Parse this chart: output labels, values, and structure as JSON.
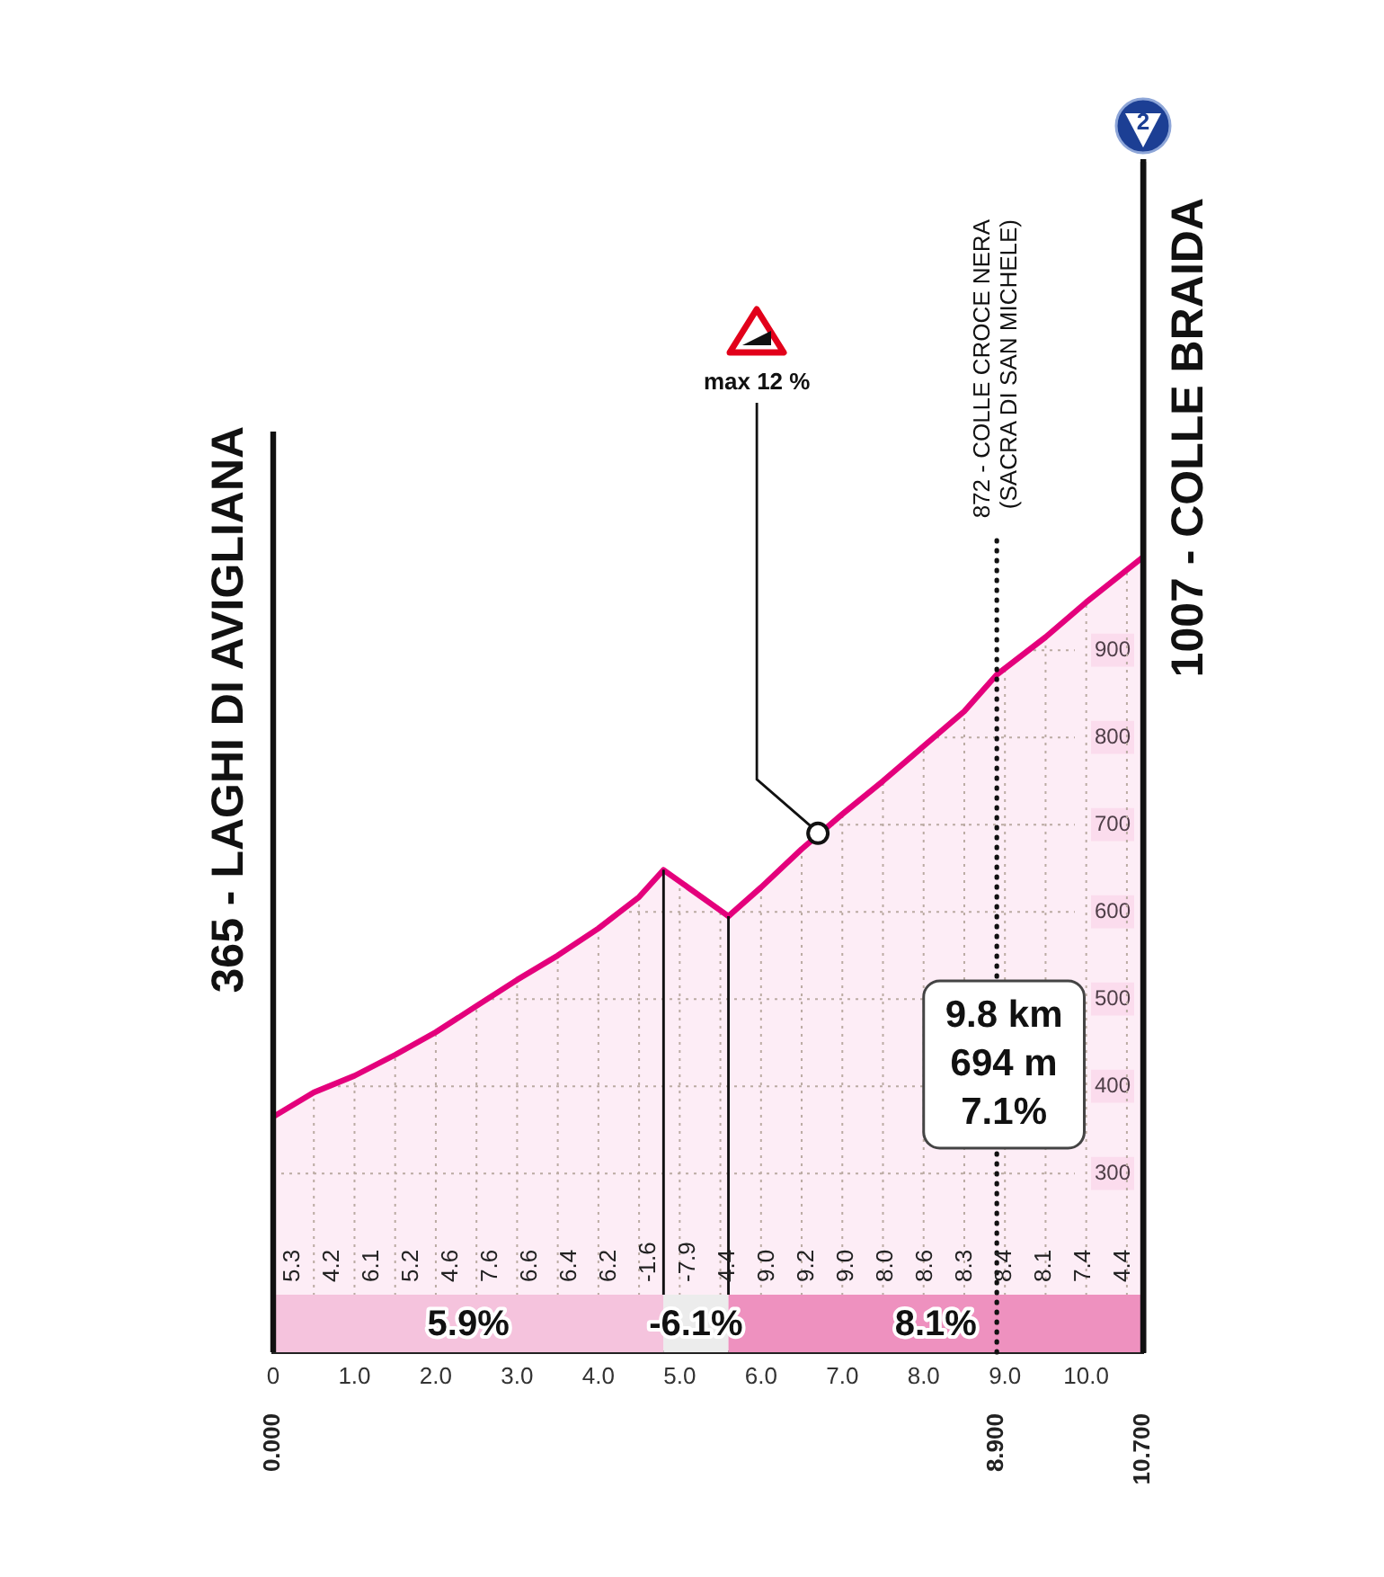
{
  "chart_data": {
    "type": "area",
    "x": [
      0,
      0.5,
      1,
      1.5,
      2,
      2.5,
      3,
      3.5,
      4,
      4.5,
      4.8,
      5.6,
      6,
      6.5,
      7,
      7.5,
      8,
      8.5,
      8.9,
      9.5,
      10,
      10.7
    ],
    "values": [
      365,
      393,
      412,
      436,
      462,
      492,
      522,
      550,
      581,
      617,
      648,
      595,
      628,
      672,
      712,
      750,
      790,
      830,
      872,
      915,
      955,
      1007
    ],
    "color": "#e4007c",
    "xlim": [
      0,
      10.7
    ],
    "xticks": [
      0,
      {
        "value": 0.5,
        "label": null
      },
      {
        "value": 1,
        "label": "1.0"
      },
      {
        "value": 1.5,
        "label": null
      },
      {
        "value": 2,
        "label": "2.0"
      },
      {
        "value": 2.5,
        "label": null
      },
      {
        "value": 3,
        "label": "3.0"
      },
      {
        "value": 3.5,
        "label": null
      },
      {
        "value": 4,
        "label": "4.0"
      },
      {
        "value": 4.5,
        "label": null
      },
      {
        "value": 5,
        "label": "5.0"
      },
      {
        "value": 5.5,
        "label": null
      },
      {
        "value": 6,
        "label": "6.0"
      },
      {
        "value": 6.5,
        "label": null
      },
      {
        "value": 7,
        "label": "7.0"
      },
      {
        "value": 7.5,
        "label": null
      },
      {
        "value": 8,
        "label": "8.0"
      },
      {
        "value": 8.5,
        "label": null
      },
      {
        "value": 9,
        "label": "9.0"
      },
      {
        "value": 9.5,
        "label": null
      },
      {
        "value": 10,
        "label": "10.0"
      },
      {
        "value": 10.5,
        "label": null
      }
    ],
    "ylim": [
      95,
      1460
    ],
    "yticks": [
      300,
      400,
      500,
      600,
      700,
      800,
      900
    ],
    "x2lim": [
      0,
      10.7
    ],
    "x2ticks": [
      {
        "value": 0,
        "label": "0.000"
      },
      {
        "value": 8.9,
        "label": "8.900"
      },
      {
        "value": 10.7,
        "label": "10.700"
      }
    ],
    "grid": true,
    "marker": "none",
    "line_style": "solid",
    "bands": [
      {
        "axis": "x",
        "from": 0,
        "to": 4.8,
        "label": "5.9%",
        "color": "#f5c3dd"
      },
      {
        "axis": "x",
        "from": 4.8,
        "to": 5.6,
        "label": "-6.1%",
        "color": "#ececec"
      },
      {
        "axis": "x",
        "from": 5.6,
        "to": 10.7,
        "label": "8.1%",
        "color": "#ee91bf"
      }
    ],
    "ref_lines": [
      {
        "axis": "x",
        "value": 8.9,
        "label": "872 - COLLE CROCE NERA\n(SACRA DI SAN MICHELE)",
        "line_style": "dotted"
      }
    ],
    "annotations": [
      "2",
      "9.8 km\n694 m\n7.1%",
      "5.3",
      "4.2",
      "6.1",
      "5.2",
      "4.6",
      "7.6",
      "6.6",
      "6.4",
      "6.2",
      "-1.6",
      "-7.9",
      "4.4",
      "9.0",
      "9.2",
      "9.0",
      "8.0",
      "8.6",
      "8.3",
      "8.4",
      "8.1",
      "7.4",
      "4.4",
      {
        "text": "365 - LAGHI DI AVIGLIANA",
        "x": 0,
        "y": 365
      },
      {
        "text": "1007 - COLLE BRAIDA",
        "x": 10.7,
        "y": 1007
      },
      {
        "text": "max 12 %",
        "x": 6.7,
        "y": 690
      }
    ]
  }
}
